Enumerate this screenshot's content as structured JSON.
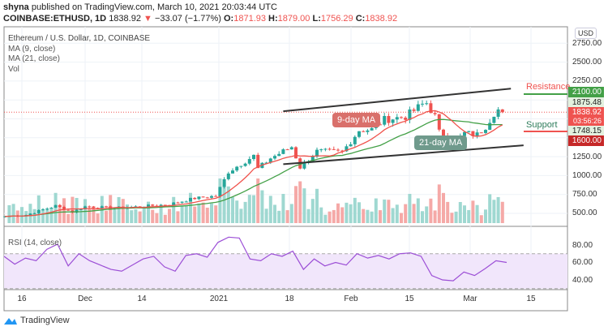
{
  "header": {
    "publisher": "shyna",
    "published_text": "published on TradingView.com, March 10, 2021 20:03:44 UTC",
    "symbol": "COINBASE:ETHUSD, 1D",
    "last": "1838.92",
    "change": "−33.07 (−1.77%)",
    "direction_icon": "triangle-down-icon",
    "o_label": "O:",
    "o": "1871.93",
    "h_label": "H:",
    "h": "1879.00",
    "l_label": "L:",
    "l": "1756.29",
    "c_label": "C:",
    "c": "1838.92"
  },
  "legend": {
    "title": "Ethereum / U.S. Dollar, 1D, COINBASE",
    "ma9": "MA (9, close)",
    "ma21": "MA (21, close)",
    "vol": "Vol"
  },
  "annotations": {
    "ma9": "9-day MA",
    "ma21": "21-day MA",
    "resistance": "Resistance",
    "support": "Support"
  },
  "price_axis": {
    "unit": "USD",
    "ticks": [
      "2750.00",
      "2500.00",
      "2250.00",
      "1250.00",
      "1000.00",
      "750.00",
      "500.00"
    ],
    "tags": {
      "resistance": "2100.00",
      "ma9": "1875.48",
      "last": "1838.92",
      "countdown": "03:56:26",
      "ma21": "1748.15",
      "support": "1600.00"
    }
  },
  "rsi": {
    "label": "RSI (14, close)",
    "ticks": [
      "80.00",
      "60.00",
      "40.00"
    ],
    "band": [
      30,
      70
    ]
  },
  "x_axis": {
    "ticks": [
      "16",
      "Dec",
      "14",
      "2021",
      "18",
      "Feb",
      "15",
      "Mar",
      "15"
    ]
  },
  "brand": "TradingView",
  "colors": {
    "up": "#26a69a",
    "down": "#ef5350",
    "ma9": "#f0524b",
    "ma21": "#43a047",
    "rsi": "#9c4fd6",
    "rsi_band": "#f1e6fb"
  },
  "chart_data": {
    "type": "candlestick",
    "series_name": "COINBASE:ETHUSD 1D",
    "close_keypoints": [
      [
        "2020-11-12",
        460
      ],
      [
        "2020-11-17",
        480
      ],
      [
        "2020-11-24",
        600
      ],
      [
        "2020-11-28",
        520
      ],
      [
        "2020-12-01",
        590
      ],
      [
        "2020-12-08",
        570
      ],
      [
        "2020-12-14",
        590
      ],
      [
        "2020-12-21",
        620
      ],
      [
        "2020-12-27",
        700
      ],
      [
        "2021-01-01",
        730
      ],
      [
        "2021-01-04",
        1050
      ],
      [
        "2021-01-10",
        1260
      ],
      [
        "2021-01-11",
        1090
      ],
      [
        "2021-01-14",
        1230
      ],
      [
        "2021-01-19",
        1380
      ],
      [
        "2021-01-21",
        1110
      ],
      [
        "2021-01-25",
        1320
      ],
      [
        "2021-01-31",
        1310
      ],
      [
        "2021-02-04",
        1600
      ],
      [
        "2021-02-07",
        1610
      ],
      [
        "2021-02-10",
        1740
      ],
      [
        "2021-02-15",
        1780
      ],
      [
        "2021-02-19",
        1940
      ],
      [
        "2021-02-20",
        1960
      ],
      [
        "2021-02-22",
        1780
      ],
      [
        "2021-02-23",
        1570
      ],
      [
        "2021-02-27",
        1450
      ],
      [
        "2021-03-01",
        1560
      ],
      [
        "2021-03-04",
        1540
      ],
      [
        "2021-03-06",
        1650
      ],
      [
        "2021-03-08",
        1830
      ],
      [
        "2021-03-09",
        1870
      ],
      [
        "2021-03-10",
        1839
      ]
    ],
    "rsi_keypoints": [
      [
        "2020-11-12",
        67
      ],
      [
        "2020-11-15",
        58
      ],
      [
        "2020-11-18",
        65
      ],
      [
        "2020-11-21",
        62
      ],
      [
        "2020-11-24",
        75
      ],
      [
        "2020-11-26",
        81
      ],
      [
        "2020-11-29",
        56
      ],
      [
        "2020-12-03",
        70
      ],
      [
        "2020-12-05",
        62
      ],
      [
        "2020-12-08",
        57
      ],
      [
        "2020-12-11",
        52
      ],
      [
        "2020-12-14",
        50
      ],
      [
        "2020-12-17",
        57
      ],
      [
        "2020-12-20",
        64
      ],
      [
        "2020-12-24",
        67
      ],
      [
        "2020-12-27",
        55
      ],
      [
        "2020-12-30",
        50
      ],
      [
        "2021-01-03",
        68
      ],
      [
        "2021-01-06",
        70
      ],
      [
        "2021-01-08",
        66
      ],
      [
        "2021-01-10",
        83
      ],
      [
        "2021-01-13",
        89
      ],
      [
        "2021-01-16",
        88
      ],
      [
        "2021-01-18",
        64
      ],
      [
        "2021-01-20",
        62
      ],
      [
        "2021-01-22",
        70
      ],
      [
        "2021-01-25",
        67
      ],
      [
        "2021-01-28",
        73
      ],
      [
        "2021-01-29",
        52
      ],
      [
        "2021-02-01",
        64
      ],
      [
        "2021-02-04",
        56
      ],
      [
        "2021-02-07",
        60
      ],
      [
        "2021-02-10",
        57
      ],
      [
        "2021-02-14",
        70
      ],
      [
        "2021-02-18",
        65
      ],
      [
        "2021-02-22",
        68
      ],
      [
        "2021-02-26",
        64
      ],
      [
        "2021-02-28",
        70
      ],
      [
        "2021-03-02",
        71
      ],
      [
        "2021-03-05",
        67
      ],
      [
        "2021-03-08",
        45
      ],
      [
        "2021-03-11",
        40
      ],
      [
        "2021-03-13",
        39
      ],
      [
        "2021-03-15",
        49
      ],
      [
        "2021-03-18",
        45
      ],
      [
        "2021-03-21",
        53
      ],
      [
        "2021-03-24",
        62
      ],
      [
        "2021-03-26",
        60
      ]
    ],
    "ylim": [
      500,
      2750
    ],
    "rsi_ylim": [
      20,
      100
    ],
    "legend": "top-left",
    "grid": true,
    "channel": {
      "upper": [
        [
          "2021-01-17",
          1850
        ],
        [
          "2021-03-12",
          2150
        ]
      ],
      "lower": [
        [
          "2021-01-17",
          1150
        ],
        [
          "2021-03-15",
          1400
        ]
      ]
    }
  }
}
